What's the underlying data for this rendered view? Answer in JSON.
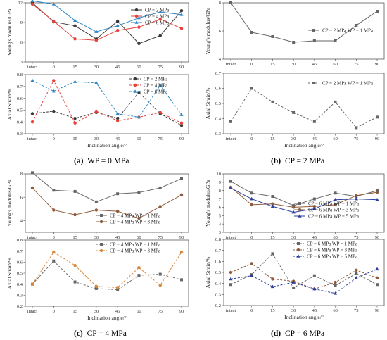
{
  "x_categories": [
    "intact",
    "0",
    "15",
    "30",
    "45",
    "60",
    "75",
    "90"
  ],
  "x_label": "Inclination angle/°",
  "colors": {
    "black": "#3a3a3a",
    "red": "#e8413c",
    "blue": "#2e86c1",
    "gray": "#666666",
    "brown": "#8e5b3d",
    "orange": "#d9893e",
    "darkblue": "#2c3e9a"
  },
  "captions": [
    {
      "label": "(a)",
      "text": "WP = 0 MPa"
    },
    {
      "label": "(b)",
      "text": "CP = 2 MPa"
    },
    {
      "label": "(c)",
      "text": "CP = 4 MPa"
    },
    {
      "label": "(d)",
      "text": "CP = 6 MPa"
    }
  ],
  "chart_data": [
    {
      "id": "a-modulus",
      "type": "line",
      "panel": "a",
      "ylabel": "Young's modulus/GPa",
      "ylim": [
        3,
        12
      ],
      "yticks": [
        3,
        6,
        9,
        12
      ],
      "dashed": false,
      "legend": "top-right",
      "series": [
        {
          "name": "CP = 2 MPa",
          "color": "#3a3a3a",
          "marker": "circle",
          "values": [
            12.0,
            9.1,
            8.5,
            6.5,
            9.2,
            5.8,
            7.0,
            10.8
          ]
        },
        {
          "name": "CP = 4 MPa",
          "color": "#e8413c",
          "marker": "circle",
          "values": [
            11.8,
            9.2,
            6.5,
            6.3,
            7.8,
            8.3,
            9.5,
            8.1
          ]
        },
        {
          "name": "CP = 6 MPa",
          "color": "#2e86c1",
          "marker": "triangle",
          "values": [
            12.3,
            11.8,
            9.3,
            7.6,
            8.5,
            9.7,
            10.6,
            10.2
          ]
        }
      ]
    },
    {
      "id": "a-strain",
      "type": "line",
      "panel": "a",
      "ylabel": "Axial Strain/%",
      "ylim": [
        0.3,
        0.8
      ],
      "yticks": [
        0.3,
        0.4,
        0.5,
        0.6,
        0.7,
        0.8
      ],
      "dashed": true,
      "legend": "top-right",
      "series": [
        {
          "name": "CP = 2 MPa",
          "color": "#3a3a3a",
          "marker": "circle",
          "values": [
            0.47,
            0.49,
            0.43,
            0.48,
            0.43,
            0.65,
            0.47,
            0.37
          ]
        },
        {
          "name": "CP = 4 MPa",
          "color": "#e8413c",
          "marker": "circle",
          "values": [
            0.4,
            0.75,
            0.39,
            0.49,
            0.41,
            0.44,
            0.48,
            0.39
          ]
        },
        {
          "name": "CP = 6 MPa",
          "color": "#2e86c1",
          "marker": "triangle",
          "values": [
            0.75,
            0.66,
            0.74,
            0.73,
            0.47,
            0.44,
            0.71,
            0.46
          ]
        }
      ]
    },
    {
      "id": "b-modulus",
      "type": "line",
      "panel": "b",
      "ylabel": "Young's modulus/GPa",
      "ylim": [
        4,
        8
      ],
      "yticks": [
        4,
        6,
        8
      ],
      "dashed": false,
      "legend": "center-right",
      "series": [
        {
          "name": "CP = 2 MPa WP = 1 MPa",
          "color": "#666666",
          "marker": "square",
          "values": [
            8.0,
            5.9,
            5.6,
            5.2,
            5.3,
            5.3,
            6.4,
            7.4
          ]
        }
      ]
    },
    {
      "id": "b-strain",
      "type": "line",
      "panel": "b",
      "ylabel": "Axial Strain/%",
      "ylim": [
        0.3,
        0.7
      ],
      "yticks": [
        0.3,
        0.4,
        0.5,
        0.6,
        0.7
      ],
      "dashed": true,
      "legend": "top-right",
      "series": [
        {
          "name": "CP = 2 MPa WP = 1 MPa",
          "color": "#666666",
          "marker": "square",
          "values": [
            0.38,
            0.6,
            0.51,
            0.44,
            0.38,
            0.51,
            0.34,
            0.41
          ]
        }
      ]
    },
    {
      "id": "c-modulus",
      "type": "line",
      "panel": "c",
      "ylabel": "Young's modulus/GPa",
      "ylim": [
        3,
        8
      ],
      "yticks": [
        4,
        6,
        8
      ],
      "dashed": false,
      "legend": "bottom-right",
      "series": [
        {
          "name": "CP = 4 MPa WP = 1 MPa",
          "color": "#666666",
          "marker": "square",
          "values": [
            8.1,
            6.6,
            6.5,
            5.6,
            6.3,
            6.4,
            6.8,
            7.6
          ]
        },
        {
          "name": "CP = 4 MPa WP = 3 MPa",
          "color": "#8e5b3d",
          "marker": "circle",
          "values": [
            6.8,
            4.9,
            4.5,
            4.9,
            4.8,
            4.2,
            5.2,
            6.2
          ]
        }
      ]
    },
    {
      "id": "c-strain",
      "type": "line",
      "panel": "c",
      "ylabel": "Axial Strain/%",
      "ylim": [
        0.2,
        0.8
      ],
      "yticks": [
        0.2,
        0.3,
        0.4,
        0.5,
        0.6,
        0.7,
        0.8
      ],
      "dashed": true,
      "legend": "top-right",
      "series": [
        {
          "name": "CP = 4 MPa WP = 1 MPa",
          "color": "#666666",
          "marker": "square",
          "values": [
            0.4,
            0.61,
            0.42,
            0.36,
            0.35,
            0.48,
            0.49,
            0.44
          ]
        },
        {
          "name": "CP = 4 MPa WP = 3 MPa",
          "color": "#d9893e",
          "marker": "circle",
          "values": [
            0.4,
            0.69,
            0.57,
            0.38,
            0.37,
            0.55,
            0.39,
            0.69
          ]
        }
      ]
    },
    {
      "id": "d-modulus",
      "type": "line",
      "panel": "d",
      "ylabel": "Young's modulus/GPa",
      "ylim": [
        3,
        10
      ],
      "yticks": [
        3,
        4,
        5,
        6,
        7,
        8,
        9,
        10
      ],
      "dashed": false,
      "legend": "bottom-right",
      "series": [
        {
          "name": "CP = 6 MPa WP = 1 MPa",
          "color": "#666666",
          "marker": "square",
          "values": [
            9.1,
            7.7,
            7.3,
            6.2,
            7.0,
            7.7,
            7.3,
            8.0
          ]
        },
        {
          "name": "CP = 6 MPa WP = 3 MPa",
          "color": "#8e5b3d",
          "marker": "circle",
          "values": [
            8.4,
            6.3,
            6.4,
            6.0,
            6.1,
            6.3,
            7.4,
            7.8
          ]
        },
        {
          "name": "CP = 6 MPa WP = 5 MPa",
          "color": "#2c3e9a",
          "marker": "triangle",
          "values": [
            8.3,
            7.0,
            6.1,
            5.4,
            5.8,
            6.9,
            7.0,
            6.9
          ]
        }
      ]
    },
    {
      "id": "d-strain",
      "type": "line",
      "panel": "d",
      "ylabel": "Axial Strain/%",
      "ylim": [
        0.2,
        0.8
      ],
      "yticks": [
        0.2,
        0.3,
        0.4,
        0.5,
        0.6,
        0.7,
        0.8
      ],
      "dashed": true,
      "legend": "top-center",
      "series": [
        {
          "name": "CP = 6 MPa WP = 1 MPa",
          "color": "#666666",
          "marker": "square",
          "values": [
            0.39,
            0.48,
            0.67,
            0.36,
            0.47,
            0.38,
            0.49,
            0.39
          ]
        },
        {
          "name": "CP = 6 MPa WP = 3 MPa",
          "color": "#8e5b3d",
          "marker": "circle",
          "values": [
            0.5,
            0.58,
            0.44,
            0.42,
            0.35,
            0.41,
            0.52,
            0.45
          ]
        },
        {
          "name": "CP = 6 MPa WP = 5 MPa",
          "color": "#2c3e9a",
          "marker": "triangle",
          "values": [
            0.44,
            0.47,
            0.37,
            0.41,
            0.35,
            0.31,
            0.45,
            0.53
          ]
        }
      ]
    }
  ]
}
